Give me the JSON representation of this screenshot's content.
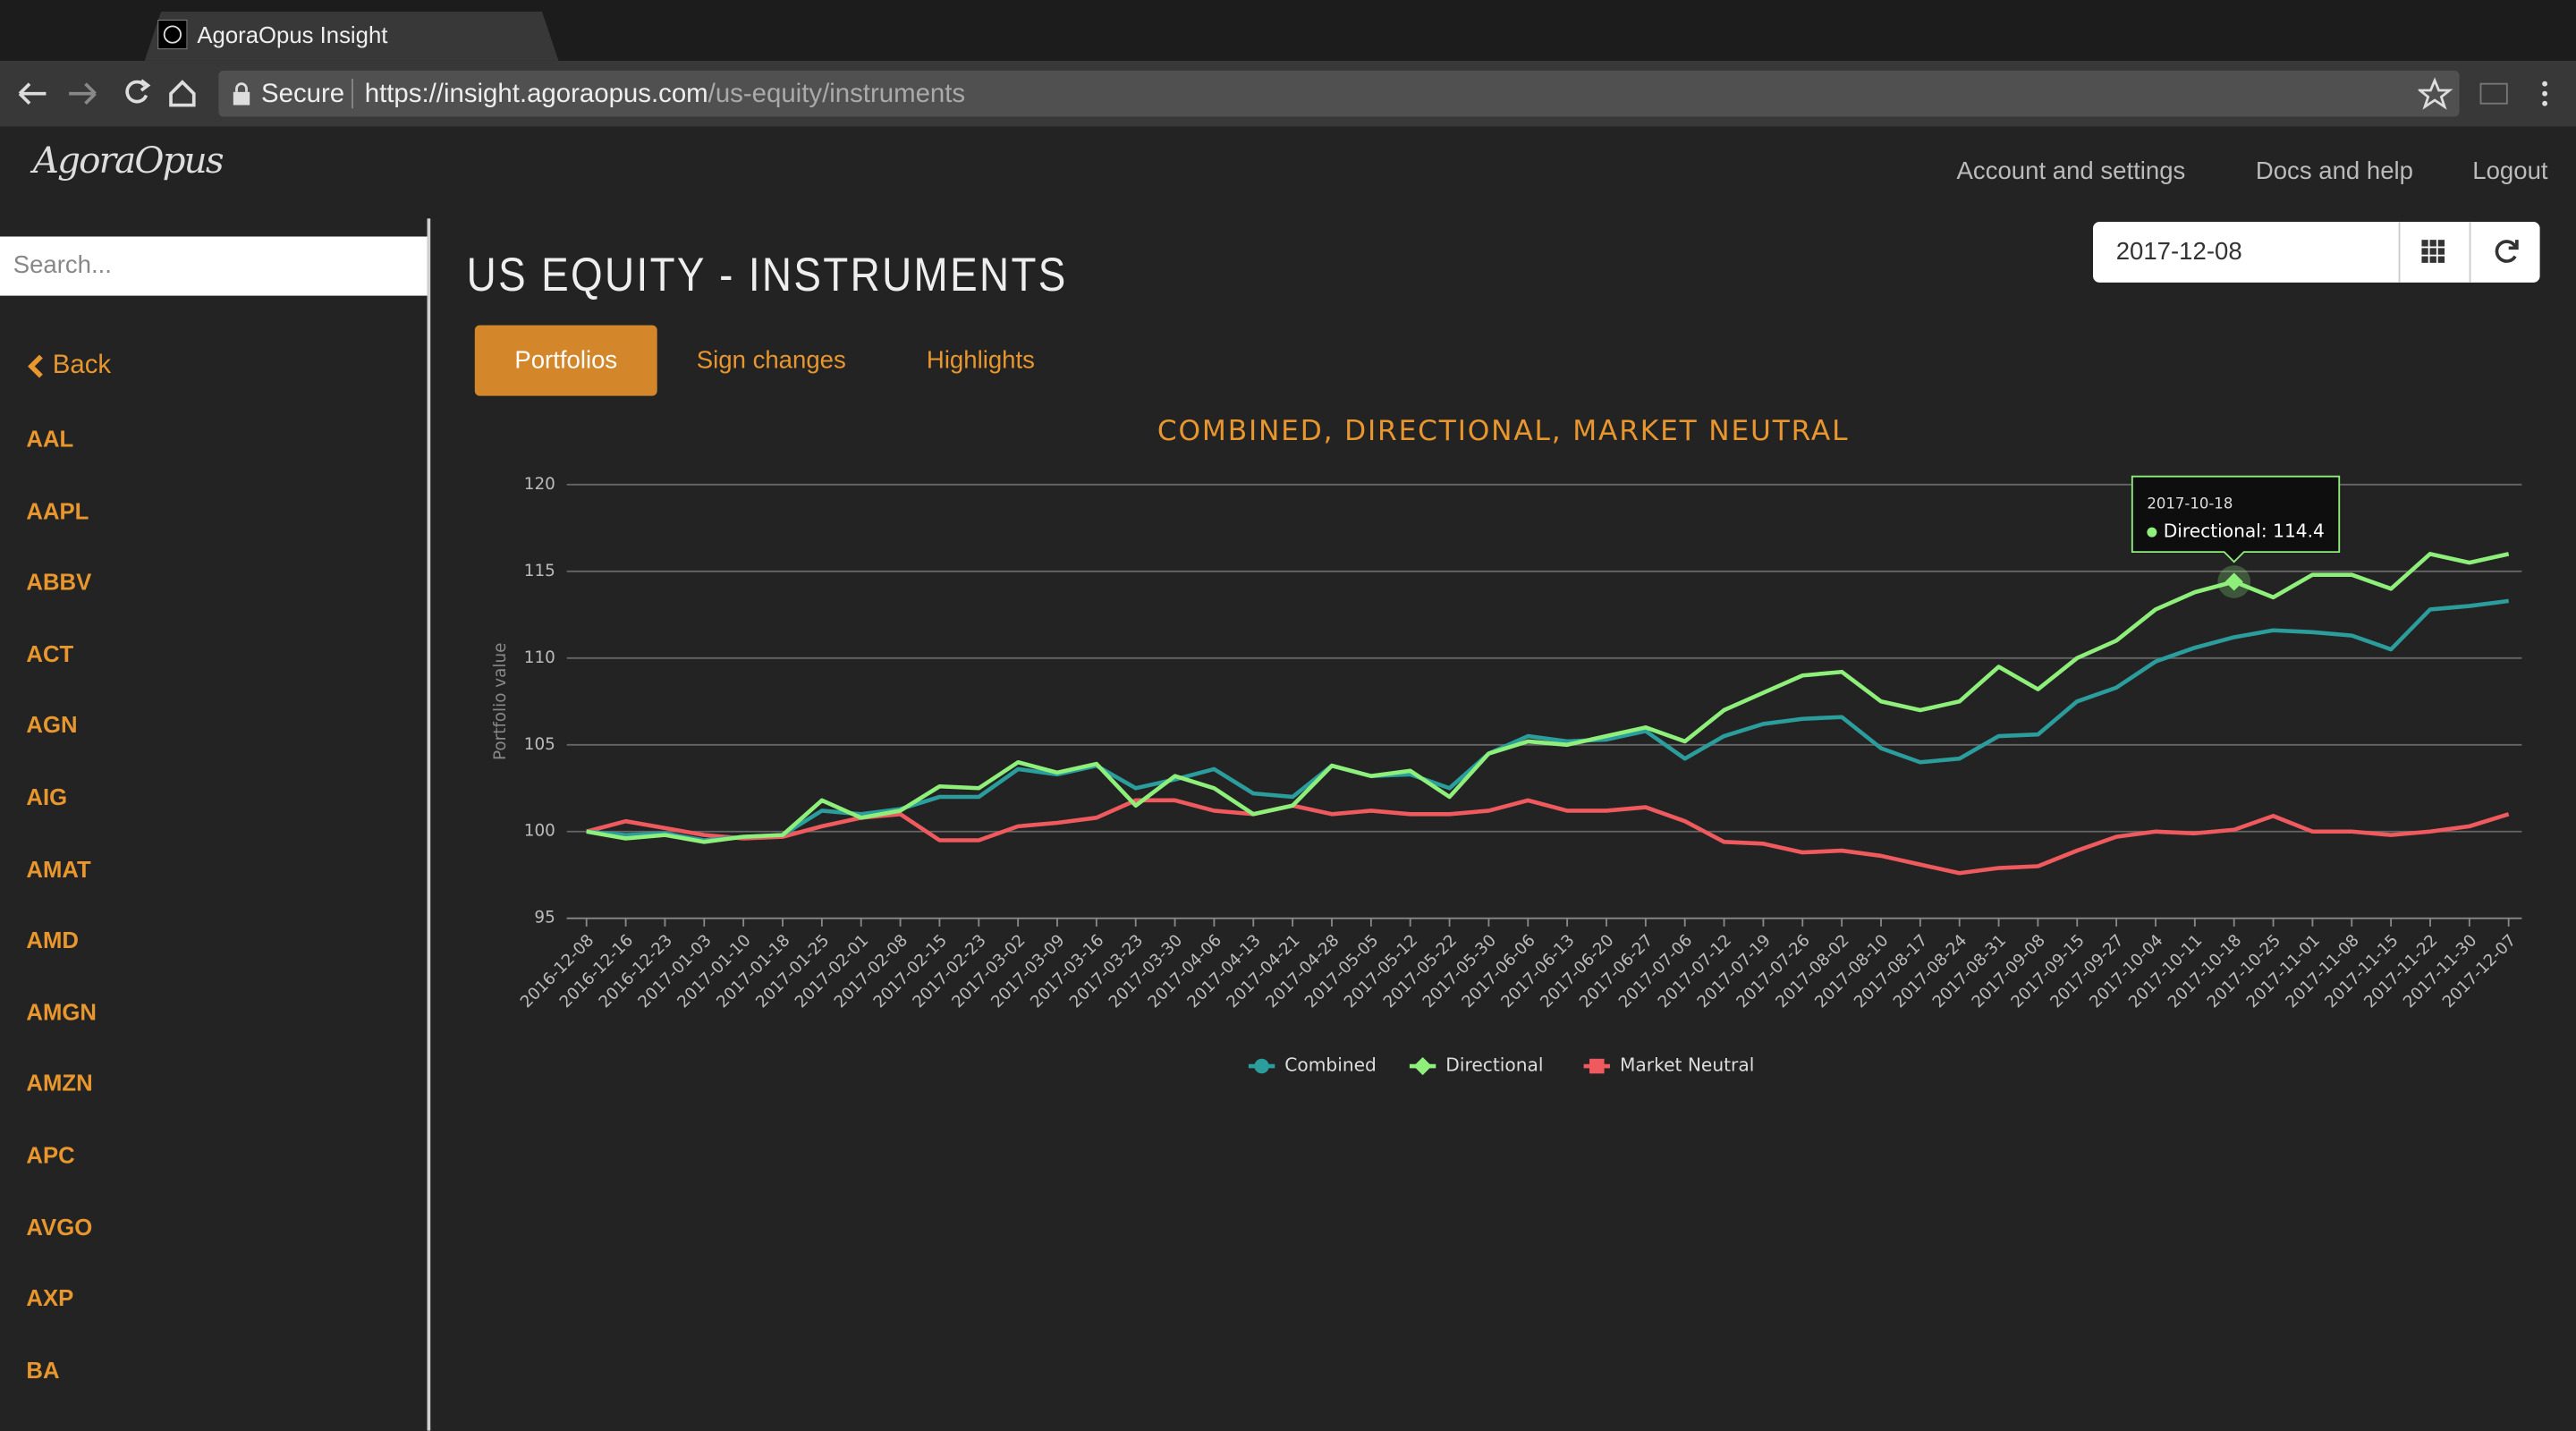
{
  "browser": {
    "tab_title": "AgoraOpus Insight",
    "secure_label": "Secure",
    "url_host": "https://insight.agoraopus.com",
    "url_path": "/us-equity/instruments"
  },
  "nav": {
    "logo": "AgoraOpus",
    "links": [
      "Account and settings",
      "Docs and help",
      "Logout"
    ]
  },
  "sidebar": {
    "search_placeholder": "Search...",
    "back": "Back",
    "tickers": [
      "AAL",
      "AAPL",
      "ABBV",
      "ACT",
      "AGN",
      "AIG",
      "AMAT",
      "AMD",
      "AMGN",
      "AMZN",
      "APC",
      "AVGO",
      "AXP",
      "BA"
    ]
  },
  "header": {
    "title": "US EQUITY - INSTRUMENTS",
    "date": "2017-12-08",
    "tabs": [
      "Portfolios",
      "Sign changes",
      "Highlights"
    ]
  },
  "chart_data": {
    "type": "line",
    "title": "COMBINED, DIRECTIONAL, MARKET NEUTRAL",
    "y_label": "Portfolio value",
    "categories": [
      "2016-12-08",
      "2016-12-16",
      "2016-12-23",
      "2017-01-03",
      "2017-01-10",
      "2017-01-18",
      "2017-01-25",
      "2017-02-01",
      "2017-02-08",
      "2017-02-15",
      "2017-02-23",
      "2017-03-02",
      "2017-03-09",
      "2017-03-16",
      "2017-03-23",
      "2017-03-30",
      "2017-04-06",
      "2017-04-13",
      "2017-04-21",
      "2017-04-28",
      "2017-05-05",
      "2017-05-12",
      "2017-05-22",
      "2017-05-30",
      "2017-06-06",
      "2017-06-13",
      "2017-06-20",
      "2017-06-27",
      "2017-07-06",
      "2017-07-12",
      "2017-07-19",
      "2017-07-26",
      "2017-08-02",
      "2017-08-10",
      "2017-08-17",
      "2017-08-24",
      "2017-08-31",
      "2017-09-08",
      "2017-09-15",
      "2017-09-27",
      "2017-10-04",
      "2017-10-11",
      "2017-10-18",
      "2017-10-25",
      "2017-11-01",
      "2017-11-08",
      "2017-11-15",
      "2017-11-22",
      "2017-11-30",
      "2017-12-07"
    ],
    "series": [
      {
        "name": "Combined",
        "color": "#2a9d9c",
        "marker": "circle",
        "values": [
          100,
          99.8,
          99.9,
          99.5,
          99.7,
          99.8,
          101.2,
          101.0,
          101.3,
          102.0,
          102.0,
          103.6,
          103.3,
          103.8,
          102.5,
          103.0,
          103.6,
          102.2,
          102.0,
          103.8,
          103.2,
          103.3,
          102.5,
          104.5,
          105.5,
          105.2,
          105.3,
          105.8,
          104.2,
          105.5,
          106.2,
          106.5,
          106.6,
          104.8,
          104.0,
          104.2,
          105.5,
          105.6,
          107.5,
          108.3,
          109.8,
          110.6,
          111.2,
          111.6,
          111.5,
          111.3,
          110.5,
          112.8,
          113.0,
          113.3
        ]
      },
      {
        "name": "Directional",
        "color": "#8ef07a",
        "marker": "diamond",
        "values": [
          100,
          99.6,
          99.8,
          99.4,
          99.7,
          99.8,
          101.8,
          100.8,
          101.2,
          102.6,
          102.5,
          104.0,
          103.4,
          103.9,
          101.5,
          103.2,
          102.5,
          101.0,
          101.5,
          103.8,
          103.2,
          103.5,
          102.0,
          104.5,
          105.2,
          105.0,
          105.5,
          106.0,
          105.2,
          107.0,
          108.0,
          109.0,
          109.2,
          107.5,
          107.0,
          107.5,
          109.5,
          108.2,
          110.0,
          111.0,
          112.8,
          113.8,
          114.4,
          113.5,
          114.8,
          114.8,
          114.0,
          116.0,
          115.5,
          116.0
        ]
      },
      {
        "name": "Market Neutral",
        "color": "#ef5a5f",
        "marker": "square",
        "values": [
          100,
          100.6,
          100.2,
          99.8,
          99.6,
          99.7,
          100.3,
          100.8,
          101.0,
          99.5,
          99.5,
          100.3,
          100.5,
          100.8,
          101.8,
          101.8,
          101.2,
          101.0,
          101.5,
          101.0,
          101.2,
          101.0,
          101.0,
          101.2,
          101.8,
          101.2,
          101.2,
          101.4,
          100.6,
          99.4,
          99.3,
          98.8,
          98.9,
          98.6,
          98.1,
          97.6,
          97.9,
          98.0,
          98.9,
          99.7,
          100.0,
          99.9,
          100.1,
          100.9,
          100.0,
          100.0,
          99.8,
          100.0,
          100.3,
          101.0
        ]
      }
    ],
    "ylim": [
      95,
      120
    ],
    "yticks": [
      95,
      100,
      105,
      110,
      115,
      120
    ],
    "grid": true,
    "legend": "bottom",
    "tooltip": {
      "title": "2017-10-18",
      "text": "Directional: 114.4"
    }
  }
}
